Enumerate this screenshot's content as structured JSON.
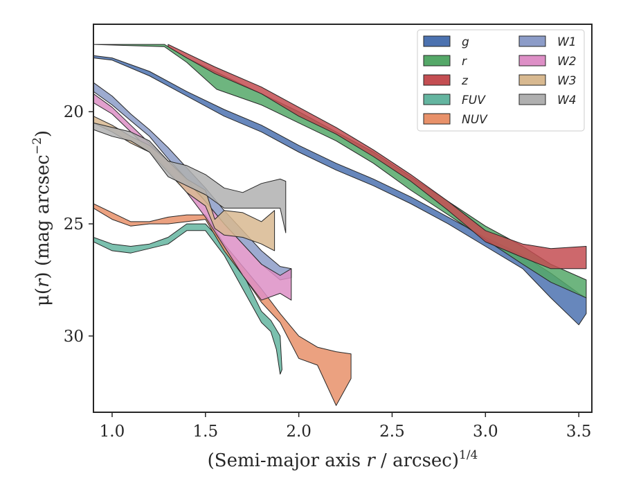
{
  "chart_data": {
    "type": "area",
    "xlabel_main": "(Semi-major axis ",
    "xlabel_var": "r",
    "xlabel_rest": " / arcsec)",
    "xlabel_sup": "1/4",
    "ylabel_main": "μ(",
    "ylabel_var": "r",
    "ylabel_rest": ") (mag arcsec",
    "ylabel_sup": "−2",
    "ylabel_end": ")",
    "xlim": [
      0.9,
      3.57
    ],
    "ylim": [
      33.4,
      16.1
    ],
    "y_inverted": true,
    "x_ticks": [
      1.0,
      1.5,
      2.0,
      2.5,
      3.0,
      3.5
    ],
    "x_tick_labels": [
      "1.0",
      "1.5",
      "2.0",
      "2.5",
      "3.0",
      "3.5"
    ],
    "y_ticks": [
      20,
      25,
      30
    ],
    "y_tick_labels": [
      "20",
      "25",
      "30"
    ],
    "grid": false,
    "legend_placement": "top-right",
    "legend_columns": 2,
    "series": [
      {
        "name": "g",
        "color": "#4c72b0",
        "upper": [
          [
            0.9,
            17.5
          ],
          [
            1.0,
            17.6
          ],
          [
            1.2,
            18.2
          ],
          [
            1.4,
            19.1
          ],
          [
            1.6,
            19.9
          ],
          [
            1.8,
            20.6
          ],
          [
            2.0,
            21.5
          ],
          [
            2.2,
            22.3
          ],
          [
            2.4,
            23.0
          ],
          [
            2.6,
            23.8
          ],
          [
            2.8,
            24.7
          ],
          [
            3.0,
            25.6
          ],
          [
            3.2,
            26.4
          ],
          [
            3.35,
            27.2
          ],
          [
            3.5,
            28.1
          ],
          [
            3.54,
            28.3
          ]
        ],
        "lower": [
          [
            3.54,
            29.0
          ],
          [
            3.5,
            29.5
          ],
          [
            3.35,
            28.3
          ],
          [
            3.2,
            27.0
          ],
          [
            3.0,
            26.0
          ],
          [
            2.8,
            25.0
          ],
          [
            2.6,
            24.1
          ],
          [
            2.4,
            23.3
          ],
          [
            2.2,
            22.6
          ],
          [
            2.0,
            21.8
          ],
          [
            1.8,
            20.9
          ],
          [
            1.6,
            20.2
          ],
          [
            1.4,
            19.3
          ],
          [
            1.2,
            18.4
          ],
          [
            1.0,
            17.7
          ],
          [
            0.9,
            17.6
          ]
        ]
      },
      {
        "name": "r",
        "color": "#55a868",
        "upper": [
          [
            0.9,
            17.0
          ],
          [
            1.28,
            17.0
          ],
          [
            1.4,
            17.6
          ],
          [
            1.55,
            18.2
          ],
          [
            1.8,
            19.2
          ],
          [
            2.0,
            20.0
          ],
          [
            2.2,
            20.9
          ],
          [
            2.4,
            21.8
          ],
          [
            2.6,
            22.9
          ],
          [
            2.8,
            24.0
          ],
          [
            3.0,
            25.1
          ],
          [
            3.2,
            26.0
          ],
          [
            3.35,
            26.8
          ],
          [
            3.54,
            27.5
          ]
        ],
        "lower": [
          [
            3.54,
            28.3
          ],
          [
            3.35,
            27.6
          ],
          [
            3.2,
            26.8
          ],
          [
            3.0,
            25.7
          ],
          [
            2.8,
            24.6
          ],
          [
            2.6,
            23.5
          ],
          [
            2.4,
            22.3
          ],
          [
            2.2,
            21.3
          ],
          [
            2.0,
            20.5
          ],
          [
            1.8,
            19.7
          ],
          [
            1.56,
            19.0
          ],
          [
            1.4,
            17.8
          ],
          [
            1.28,
            17.1
          ],
          [
            0.9,
            17.0
          ]
        ]
      },
      {
        "name": "z",
        "color": "#c44e52",
        "upper": [
          [
            1.3,
            17.0
          ],
          [
            1.4,
            17.4
          ],
          [
            1.55,
            18.0
          ],
          [
            1.8,
            18.9
          ],
          [
            2.0,
            19.8
          ],
          [
            2.2,
            20.7
          ],
          [
            2.4,
            21.7
          ],
          [
            2.6,
            22.8
          ],
          [
            2.8,
            24.0
          ],
          [
            3.0,
            25.3
          ],
          [
            3.2,
            25.9
          ],
          [
            3.35,
            26.1
          ],
          [
            3.54,
            26.0
          ]
        ],
        "lower": [
          [
            3.54,
            27.0
          ],
          [
            3.35,
            27.0
          ],
          [
            3.2,
            26.5
          ],
          [
            3.0,
            25.8
          ],
          [
            2.8,
            24.4
          ],
          [
            2.6,
            23.1
          ],
          [
            2.4,
            22.0
          ],
          [
            2.2,
            21.0
          ],
          [
            2.0,
            20.2
          ],
          [
            1.8,
            19.2
          ],
          [
            1.55,
            18.3
          ],
          [
            1.4,
            17.6
          ],
          [
            1.3,
            17.1
          ]
        ]
      },
      {
        "name": "FUV",
        "color": "#64b5a0",
        "upper": [
          [
            0.9,
            25.6
          ],
          [
            1.0,
            25.9
          ],
          [
            1.1,
            26.0
          ],
          [
            1.2,
            25.9
          ],
          [
            1.3,
            25.6
          ],
          [
            1.4,
            25.0
          ],
          [
            1.5,
            25.0
          ],
          [
            1.6,
            25.9
          ],
          [
            1.7,
            27.2
          ],
          [
            1.8,
            28.9
          ],
          [
            1.85,
            29.3
          ],
          [
            1.9,
            30.0
          ],
          [
            1.91,
            31.5
          ]
        ],
        "lower": [
          [
            1.9,
            31.7
          ],
          [
            1.88,
            30.6
          ],
          [
            1.85,
            29.8
          ],
          [
            1.8,
            29.4
          ],
          [
            1.7,
            27.9
          ],
          [
            1.6,
            26.4
          ],
          [
            1.5,
            25.3
          ],
          [
            1.4,
            25.3
          ],
          [
            1.3,
            25.9
          ],
          [
            1.2,
            26.1
          ],
          [
            1.1,
            26.3
          ],
          [
            1.0,
            26.2
          ],
          [
            0.9,
            25.8
          ]
        ]
      },
      {
        "name": "NUV",
        "color": "#e8916a",
        "upper": [
          [
            0.9,
            24.1
          ],
          [
            1.0,
            24.5
          ],
          [
            1.1,
            24.9
          ],
          [
            1.2,
            24.9
          ],
          [
            1.3,
            24.7
          ],
          [
            1.4,
            24.6
          ],
          [
            1.5,
            24.6
          ],
          [
            1.6,
            25.9
          ],
          [
            1.7,
            26.9
          ],
          [
            1.8,
            27.9
          ],
          [
            1.9,
            29.0
          ],
          [
            2.0,
            30.0
          ],
          [
            2.1,
            30.5
          ],
          [
            2.2,
            30.7
          ],
          [
            2.28,
            30.8
          ]
        ],
        "lower": [
          [
            2.28,
            31.9
          ],
          [
            2.2,
            33.1
          ],
          [
            2.1,
            31.3
          ],
          [
            2.0,
            31.0
          ],
          [
            1.9,
            29.4
          ],
          [
            1.8,
            28.5
          ],
          [
            1.7,
            27.3
          ],
          [
            1.6,
            26.2
          ],
          [
            1.5,
            24.8
          ],
          [
            1.4,
            24.9
          ],
          [
            1.3,
            25.0
          ],
          [
            1.2,
            25.0
          ],
          [
            1.1,
            25.1
          ],
          [
            1.0,
            24.8
          ],
          [
            0.9,
            24.3
          ]
        ]
      },
      {
        "name": "W1",
        "color": "#8c9cc8",
        "upper": [
          [
            0.9,
            18.7
          ],
          [
            1.0,
            19.3
          ],
          [
            1.1,
            20.1
          ],
          [
            1.2,
            20.8
          ],
          [
            1.3,
            21.6
          ],
          [
            1.4,
            22.5
          ],
          [
            1.5,
            23.4
          ],
          [
            1.6,
            24.4
          ],
          [
            1.7,
            25.3
          ],
          [
            1.8,
            26.2
          ],
          [
            1.9,
            26.9
          ],
          [
            1.96,
            27.0
          ]
        ],
        "lower": [
          [
            1.96,
            27.4
          ],
          [
            1.9,
            27.5
          ],
          [
            1.8,
            26.8
          ],
          [
            1.7,
            25.9
          ],
          [
            1.6,
            25.0
          ],
          [
            1.5,
            24.0
          ],
          [
            1.4,
            23.0
          ],
          [
            1.3,
            22.1
          ],
          [
            1.2,
            21.1
          ],
          [
            1.1,
            20.4
          ],
          [
            1.0,
            19.7
          ],
          [
            0.9,
            19.1
          ]
        ]
      },
      {
        "name": "W2",
        "color": "#dd8fc6",
        "upper": [
          [
            0.9,
            19.2
          ],
          [
            1.0,
            19.8
          ],
          [
            1.1,
            20.6
          ],
          [
            1.2,
            21.4
          ],
          [
            1.3,
            22.2
          ],
          [
            1.4,
            23.1
          ],
          [
            1.5,
            24.0
          ],
          [
            1.6,
            25.0
          ],
          [
            1.7,
            25.9
          ],
          [
            1.8,
            26.8
          ],
          [
            1.9,
            27.3
          ],
          [
            1.96,
            27.0
          ]
        ],
        "lower": [
          [
            1.96,
            28.4
          ],
          [
            1.9,
            28.1
          ],
          [
            1.8,
            28.4
          ],
          [
            1.7,
            27.3
          ],
          [
            1.6,
            26.0
          ],
          [
            1.5,
            24.7
          ],
          [
            1.4,
            23.6
          ],
          [
            1.3,
            22.6
          ],
          [
            1.2,
            21.7
          ],
          [
            1.1,
            20.9
          ],
          [
            1.0,
            20.1
          ],
          [
            0.9,
            19.6
          ]
        ]
      },
      {
        "name": "W3",
        "color": "#d8b990",
        "upper": [
          [
            0.9,
            20.2
          ],
          [
            1.0,
            20.6
          ],
          [
            1.1,
            21.1
          ],
          [
            1.2,
            21.5
          ],
          [
            1.3,
            22.2
          ],
          [
            1.4,
            23.0
          ],
          [
            1.5,
            23.5
          ],
          [
            1.55,
            24.8
          ],
          [
            1.6,
            24.4
          ],
          [
            1.7,
            24.5
          ],
          [
            1.8,
            24.9
          ],
          [
            1.87,
            24.4
          ]
        ],
        "lower": [
          [
            1.87,
            26.2
          ],
          [
            1.8,
            25.9
          ],
          [
            1.7,
            25.6
          ],
          [
            1.6,
            25.5
          ],
          [
            1.55,
            25.2
          ],
          [
            1.5,
            24.2
          ],
          [
            1.4,
            23.6
          ],
          [
            1.3,
            22.7
          ],
          [
            1.2,
            21.8
          ],
          [
            1.1,
            21.4
          ],
          [
            1.0,
            20.9
          ],
          [
            0.9,
            20.5
          ]
        ]
      },
      {
        "name": "W4",
        "color": "#b0b0b0",
        "upper": [
          [
            0.9,
            20.5
          ],
          [
            1.0,
            20.7
          ],
          [
            1.1,
            20.9
          ],
          [
            1.2,
            21.3
          ],
          [
            1.3,
            22.2
          ],
          [
            1.4,
            22.4
          ],
          [
            1.5,
            22.8
          ],
          [
            1.6,
            23.4
          ],
          [
            1.7,
            23.6
          ],
          [
            1.8,
            23.2
          ],
          [
            1.9,
            23.0
          ],
          [
            1.93,
            23.1
          ]
        ],
        "lower": [
          [
            1.93,
            25.4
          ],
          [
            1.9,
            24.3
          ],
          [
            1.8,
            24.3
          ],
          [
            1.7,
            24.3
          ],
          [
            1.6,
            24.3
          ],
          [
            1.5,
            23.7
          ],
          [
            1.4,
            23.3
          ],
          [
            1.3,
            22.9
          ],
          [
            1.2,
            21.8
          ],
          [
            1.1,
            21.3
          ],
          [
            1.0,
            21.1
          ],
          [
            0.9,
            20.8
          ]
        ]
      }
    ]
  }
}
